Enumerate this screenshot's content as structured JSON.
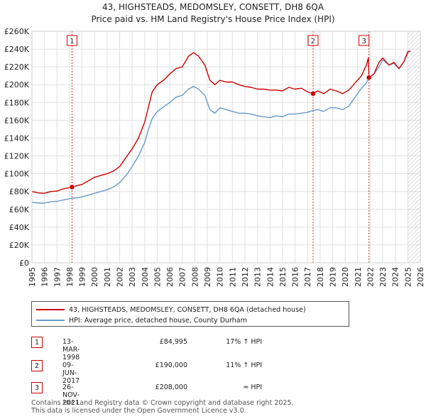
{
  "title_line1": "43, HIGHSTEADS, MEDOMSLEY, CONSETT, DH8 6QA",
  "title_line2": "Price paid vs. HM Land Registry's House Price Index (HPI)",
  "colors": {
    "property": "#cc0000",
    "hpi": "#6699cc",
    "marker_line": "#cc0000"
  },
  "chart_data": {
    "type": "line",
    "title": "43, HIGHSTEADS, MEDOMSLEY, CONSETT, DH8 6QA",
    "subtitle": "Price paid vs. HM Land Registry's House Price Index (HPI)",
    "xlim": [
      1995,
      2026
    ],
    "ylim": [
      0,
      260000
    ],
    "x_ticks": [
      "1995",
      "1996",
      "1997",
      "1998",
      "1999",
      "2000",
      "2001",
      "2002",
      "2003",
      "2004",
      "2005",
      "2006",
      "2007",
      "2008",
      "2009",
      "2010",
      "2011",
      "2012",
      "2013",
      "2014",
      "2015",
      "2016",
      "2017",
      "2018",
      "2019",
      "2020",
      "2021",
      "2022",
      "2023",
      "2024",
      "2025",
      "2026"
    ],
    "y_ticks": [
      {
        "value": 0,
        "label": "£0"
      },
      {
        "value": 20000,
        "label": "£20K"
      },
      {
        "value": 40000,
        "label": "£40K"
      },
      {
        "value": 60000,
        "label": "£60K"
      },
      {
        "value": 80000,
        "label": "£80K"
      },
      {
        "value": 100000,
        "label": "£100K"
      },
      {
        "value": 120000,
        "label": "£120K"
      },
      {
        "value": 140000,
        "label": "£140K"
      },
      {
        "value": 160000,
        "label": "£160K"
      },
      {
        "value": 180000,
        "label": "£180K"
      },
      {
        "value": 200000,
        "label": "£200K"
      },
      {
        "value": 220000,
        "label": "£220K"
      },
      {
        "value": 240000,
        "label": "£240K"
      },
      {
        "value": 260000,
        "label": "£260K"
      }
    ],
    "grid": true,
    "hatch_after": 2025.0,
    "series": [
      {
        "name": "43, HIGHSTEADS, MEDOMSLEY, CONSETT, DH8 6QA (detached house)",
        "color": "#cc0000",
        "points": [
          [
            1995.0,
            80000
          ],
          [
            1995.5,
            78500
          ],
          [
            1996.0,
            78000
          ],
          [
            1996.5,
            80000
          ],
          [
            1997.0,
            80500
          ],
          [
            1997.5,
            83000
          ],
          [
            1998.2,
            84995
          ],
          [
            1998.7,
            87000
          ],
          [
            1999.0,
            88000
          ],
          [
            1999.5,
            92000
          ],
          [
            2000.0,
            96000
          ],
          [
            2000.5,
            98000
          ],
          [
            2001.0,
            100000
          ],
          [
            2001.5,
            103000
          ],
          [
            2002.0,
            108000
          ],
          [
            2002.5,
            118000
          ],
          [
            2003.0,
            128000
          ],
          [
            2003.5,
            140000
          ],
          [
            2004.0,
            158000
          ],
          [
            2004.3,
            175000
          ],
          [
            2004.6,
            192000
          ],
          [
            2005.0,
            200000
          ],
          [
            2005.5,
            205000
          ],
          [
            2006.0,
            212000
          ],
          [
            2006.5,
            218000
          ],
          [
            2007.0,
            220000
          ],
          [
            2007.5,
            232000
          ],
          [
            2007.9,
            236000
          ],
          [
            2008.3,
            232000
          ],
          [
            2008.8,
            222000
          ],
          [
            2009.2,
            205000
          ],
          [
            2009.6,
            200000
          ],
          [
            2010.0,
            205000
          ],
          [
            2010.5,
            203000
          ],
          [
            2011.0,
            203000
          ],
          [
            2011.5,
            200000
          ],
          [
            2012.0,
            198000
          ],
          [
            2012.5,
            197000
          ],
          [
            2013.0,
            195000
          ],
          [
            2013.5,
            195000
          ],
          [
            2014.0,
            194000
          ],
          [
            2014.5,
            194000
          ],
          [
            2015.0,
            193000
          ],
          [
            2015.5,
            197000
          ],
          [
            2016.0,
            195000
          ],
          [
            2016.5,
            196000
          ],
          [
            2017.0,
            192000
          ],
          [
            2017.44,
            190000
          ],
          [
            2017.8,
            193000
          ],
          [
            2018.3,
            190000
          ],
          [
            2018.8,
            195000
          ],
          [
            2019.3,
            193000
          ],
          [
            2019.8,
            190000
          ],
          [
            2020.3,
            194000
          ],
          [
            2020.8,
            202000
          ],
          [
            2021.3,
            210000
          ],
          [
            2021.7,
            222000
          ],
          [
            2021.85,
            230000
          ],
          [
            2021.9,
            208000
          ],
          [
            2022.3,
            212000
          ],
          [
            2022.7,
            225000
          ],
          [
            2023.0,
            230000
          ],
          [
            2023.5,
            222000
          ],
          [
            2023.9,
            225000
          ],
          [
            2024.3,
            218000
          ],
          [
            2024.7,
            226000
          ],
          [
            2025.0,
            237000
          ],
          [
            2025.2,
            238000
          ]
        ]
      },
      {
        "name": "HPI: Average price, detached house, County Durham",
        "color": "#6699cc",
        "points": [
          [
            1995.0,
            68000
          ],
          [
            1995.5,
            67000
          ],
          [
            1996.0,
            67000
          ],
          [
            1996.5,
            68500
          ],
          [
            1997.0,
            69000
          ],
          [
            1997.5,
            70500
          ],
          [
            1998.2,
            72500
          ],
          [
            1998.7,
            73000
          ],
          [
            1999.0,
            74000
          ],
          [
            1999.5,
            76000
          ],
          [
            2000.0,
            78000
          ],
          [
            2000.5,
            80000
          ],
          [
            2001.0,
            82000
          ],
          [
            2001.5,
            85000
          ],
          [
            2002.0,
            90000
          ],
          [
            2002.5,
            98000
          ],
          [
            2003.0,
            108000
          ],
          [
            2003.5,
            120000
          ],
          [
            2004.0,
            135000
          ],
          [
            2004.3,
            150000
          ],
          [
            2004.6,
            162000
          ],
          [
            2005.0,
            170000
          ],
          [
            2005.5,
            175000
          ],
          [
            2006.0,
            180000
          ],
          [
            2006.5,
            186000
          ],
          [
            2007.0,
            188000
          ],
          [
            2007.5,
            195000
          ],
          [
            2007.9,
            198000
          ],
          [
            2008.3,
            195000
          ],
          [
            2008.8,
            188000
          ],
          [
            2009.2,
            172000
          ],
          [
            2009.6,
            168000
          ],
          [
            2010.0,
            174000
          ],
          [
            2010.5,
            172000
          ],
          [
            2011.0,
            170000
          ],
          [
            2011.5,
            168000
          ],
          [
            2012.0,
            168000
          ],
          [
            2012.5,
            167000
          ],
          [
            2013.0,
            165000
          ],
          [
            2013.5,
            164000
          ],
          [
            2014.0,
            163000
          ],
          [
            2014.5,
            165000
          ],
          [
            2015.0,
            164000
          ],
          [
            2015.5,
            167000
          ],
          [
            2016.0,
            167000
          ],
          [
            2016.5,
            168000
          ],
          [
            2017.0,
            169000
          ],
          [
            2017.44,
            171000
          ],
          [
            2017.8,
            172000
          ],
          [
            2018.3,
            170000
          ],
          [
            2018.8,
            174000
          ],
          [
            2019.3,
            174000
          ],
          [
            2019.8,
            172000
          ],
          [
            2020.3,
            176000
          ],
          [
            2020.8,
            186000
          ],
          [
            2021.3,
            196000
          ],
          [
            2021.7,
            202000
          ],
          [
            2021.9,
            208000
          ],
          [
            2022.3,
            212000
          ],
          [
            2022.7,
            220000
          ],
          [
            2023.0,
            228000
          ],
          [
            2023.5,
            222000
          ],
          [
            2023.9,
            224000
          ],
          [
            2024.3,
            218000
          ],
          [
            2024.7,
            226000
          ],
          [
            2025.0,
            236000
          ],
          [
            2025.2,
            238000
          ]
        ]
      }
    ],
    "transactions": [
      {
        "id": "1",
        "x": 1998.2,
        "y": 84995,
        "date": "13-MAR-1998",
        "price": "£84,995",
        "hpi": "17% ↑ HPI"
      },
      {
        "id": "2",
        "x": 2017.44,
        "y": 190000,
        "date": "09-JUN-2017",
        "price": "£190,000",
        "hpi": "11% ↑ HPI"
      },
      {
        "id": "3",
        "x": 2021.9,
        "y": 208000,
        "date": "26-NOV-2021",
        "price": "£208,000",
        "hpi": "≈ HPI"
      }
    ]
  },
  "legend": {
    "property": "43, HIGHSTEADS, MEDOMSLEY, CONSETT, DH8 6QA (detached house)",
    "hpi": "HPI: Average price, detached house, County Durham"
  },
  "footer": {
    "line1": "Contains HM Land Registry data © Crown copyright and database right 2025.",
    "line2": "This data is licensed under the Open Government Licence v3.0."
  }
}
